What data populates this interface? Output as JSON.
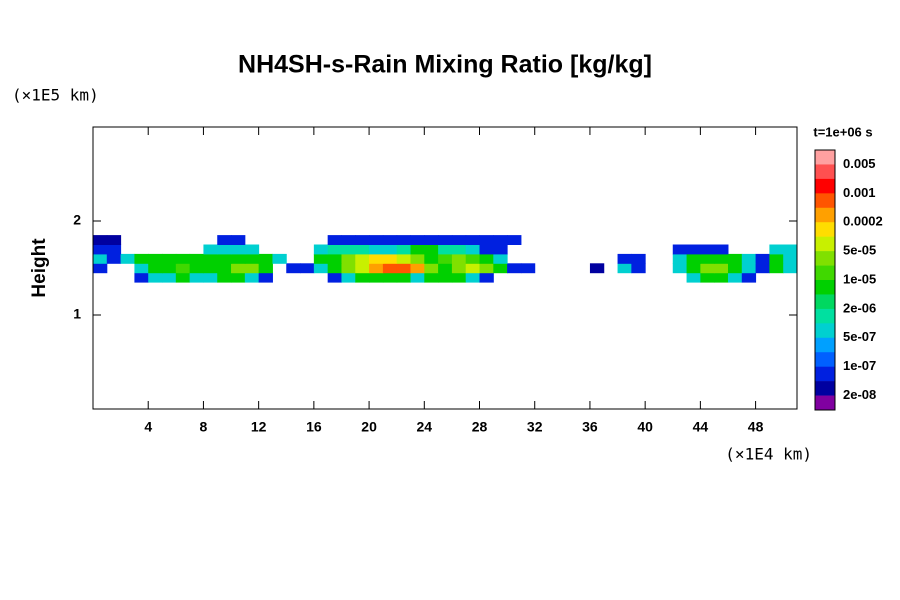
{
  "chart_data": {
    "type": "contour",
    "title": "NH4SH-s-Rain Mixing Ratio [kg/kg]",
    "ylabel": "Height",
    "yunit": "(×1E5 km)",
    "xunit": "(×1E4 km)",
    "colorbar_title": "t=1e+06 s",
    "xlim": [
      0,
      51
    ],
    "ylim": [
      0,
      3
    ],
    "xticks": [
      4,
      8,
      12,
      16,
      20,
      24,
      28,
      32,
      36,
      40,
      44,
      48
    ],
    "yticks": [
      1,
      2
    ],
    "levels": [
      0.005,
      0.001,
      0.0002,
      5e-05,
      1e-05,
      2e-06,
      5e-07,
      1e-07,
      2e-08
    ],
    "level_labels": [
      "0.005",
      "0.001",
      "0.0002",
      "5e-05",
      "1e-05",
      "2e-06",
      "5e-07",
      "1e-07",
      "2e-08"
    ],
    "colors": [
      "#ffa0a0",
      "#ff5050",
      "#ff0000",
      "#ff5500",
      "#ffa000",
      "#ffdd00",
      "#c8f000",
      "#80e000",
      "#40d800",
      "#00d000",
      "#00d860",
      "#00e0a0",
      "#00d0d0",
      "#00a0ff",
      "#0060ff",
      "#0020e0",
      "#0000a0",
      "#8000a0"
    ],
    "x": [
      0.5,
      1.5,
      2.5,
      3.5,
      4.5,
      5.5,
      6.5,
      7.5,
      8.5,
      9.5,
      10.5,
      11.5,
      12.5,
      13.5,
      14.5,
      15.5,
      16.5,
      17.5,
      18.5,
      19.5,
      20.5,
      21.5,
      22.5,
      23.5,
      24.5,
      25.5,
      26.5,
      27.5,
      28.5,
      29.5,
      30.5,
      31.5,
      32.5,
      33.5,
      34.5,
      35.5,
      36.5,
      37.5,
      38.5,
      39.5,
      40.5,
      41.5,
      42.5,
      43.5,
      44.5,
      45.5,
      46.5,
      47.5,
      48.5,
      49.5,
      50.5
    ],
    "y": [
      1.4,
      1.5,
      1.6,
      1.7,
      1.8
    ],
    "z": [
      [
        null,
        null,
        null,
        1e-07,
        1e-06,
        1e-06,
        5e-06,
        1e-06,
        1e-06,
        5e-06,
        5e-06,
        1e-06,
        1e-07,
        null,
        null,
        null,
        null,
        1e-07,
        1e-06,
        5e-06,
        1e-05,
        1e-05,
        5e-06,
        1e-06,
        5e-06,
        1e-05,
        5e-06,
        1e-06,
        1e-07,
        null,
        null,
        null,
        null,
        null,
        null,
        null,
        null,
        null,
        null,
        null,
        null,
        null,
        null,
        1e-06,
        5e-06,
        5e-06,
        1e-06,
        1e-07,
        null,
        null,
        null
      ],
      [
        1e-07,
        null,
        null,
        1e-06,
        5e-06,
        1e-05,
        2e-05,
        1e-05,
        5e-06,
        1e-05,
        3e-05,
        3e-05,
        1e-05,
        null,
        1e-07,
        1e-07,
        1e-06,
        1e-05,
        3e-05,
        0.0001,
        0.0003,
        0.0006,
        0.0006,
        0.0003,
        3e-05,
        1e-05,
        3e-05,
        0.0001,
        3e-05,
        5e-06,
        1e-07,
        5e-08,
        null,
        null,
        null,
        null,
        3e-08,
        null,
        1e-06,
        1e-07,
        null,
        null,
        1e-06,
        1e-05,
        3e-05,
        3e-05,
        1e-05,
        1e-06,
        1e-07,
        5e-06,
        1e-06
      ],
      [
        1e-06,
        1e-07,
        1e-06,
        5e-06,
        5e-06,
        1e-05,
        5e-06,
        5e-06,
        5e-06,
        1e-05,
        1e-05,
        1e-05,
        5e-06,
        1e-06,
        null,
        null,
        5e-06,
        1e-05,
        3e-05,
        0.0001,
        0.0002,
        0.0002,
        0.0001,
        3e-05,
        1e-05,
        2e-05,
        3e-05,
        2e-05,
        1e-05,
        1e-06,
        null,
        null,
        null,
        null,
        null,
        null,
        null,
        null,
        1e-07,
        1e-07,
        null,
        null,
        1e-06,
        5e-06,
        1e-05,
        1e-05,
        5e-06,
        1e-06,
        1e-07,
        5e-06,
        1e-06
      ],
      [
        1e-07,
        1e-07,
        null,
        null,
        null,
        null,
        null,
        null,
        1e-06,
        1e-06,
        1e-06,
        1e-06,
        null,
        null,
        null,
        null,
        1e-06,
        2e-06,
        2e-06,
        2e-06,
        1e-06,
        1e-06,
        2e-06,
        5e-06,
        5e-06,
        2e-06,
        2e-06,
        1e-06,
        1e-07,
        1e-07,
        null,
        null,
        null,
        null,
        null,
        null,
        null,
        null,
        null,
        null,
        null,
        null,
        1e-07,
        1e-07,
        1e-07,
        1e-07,
        null,
        null,
        null,
        1e-06,
        1e-06
      ],
      [
        3e-08,
        3e-08,
        null,
        null,
        null,
        null,
        null,
        null,
        null,
        1e-07,
        1e-07,
        null,
        null,
        null,
        null,
        null,
        null,
        1e-07,
        1e-07,
        1e-07,
        5e-08,
        5e-08,
        5e-08,
        1e-07,
        1e-07,
        1e-07,
        1e-07,
        5e-08,
        5e-08,
        5e-08,
        5e-08,
        null,
        null,
        null,
        null,
        null,
        null,
        null,
        null,
        null,
        null,
        null,
        null,
        null,
        null,
        null,
        null,
        null,
        null,
        null,
        null
      ]
    ]
  }
}
